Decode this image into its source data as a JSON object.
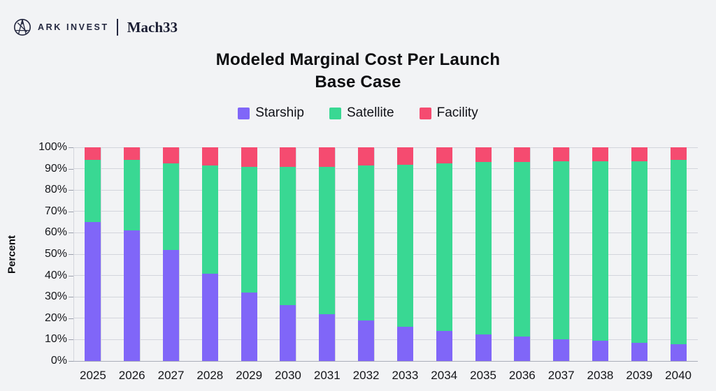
{
  "header": {
    "brand": "ARK INVEST",
    "brand_secondary": "Mach33",
    "logo_icon": "ark-circle-logo",
    "brand_color": "#23273f"
  },
  "title": {
    "line1": "Modeled Marginal Cost Per Launch",
    "line2": "Base Case"
  },
  "chart_data": {
    "type": "bar",
    "stacked": true,
    "title": "Modeled Marginal Cost Per Launch Base Case",
    "xlabel": "",
    "ylabel": "Percent",
    "ylim": [
      0,
      100
    ],
    "grid": true,
    "legend_position": "top",
    "categories": [
      "2025",
      "2026",
      "2027",
      "2028",
      "2029",
      "2030",
      "2031",
      "2032",
      "2033",
      "2034",
      "2035",
      "2036",
      "2037",
      "2038",
      "2039",
      "2040"
    ],
    "yticks": [
      "100%",
      "90%",
      "80%",
      "70%",
      "60%",
      "50%",
      "40%",
      "30%",
      "20%",
      "10%",
      "0%"
    ],
    "series": [
      {
        "name": "Starship",
        "color": "#8066f8",
        "values": [
          65,
          61,
          52,
          41,
          32,
          26,
          22,
          19,
          16,
          14,
          12.5,
          11.5,
          10,
          9.5,
          8.5,
          8
        ]
      },
      {
        "name": "Satellite",
        "color": "#39d893",
        "values": [
          29,
          33,
          40.5,
          50.5,
          59,
          65,
          69,
          72.5,
          76,
          78.5,
          80.5,
          81.5,
          83.5,
          84,
          85,
          86
        ]
      },
      {
        "name": "Facility",
        "color": "#f54b70",
        "values": [
          6,
          6,
          7.5,
          8.5,
          9,
          9,
          9,
          8.5,
          8,
          7.5,
          7,
          7,
          6.5,
          6.5,
          6.5,
          6
        ]
      }
    ]
  }
}
